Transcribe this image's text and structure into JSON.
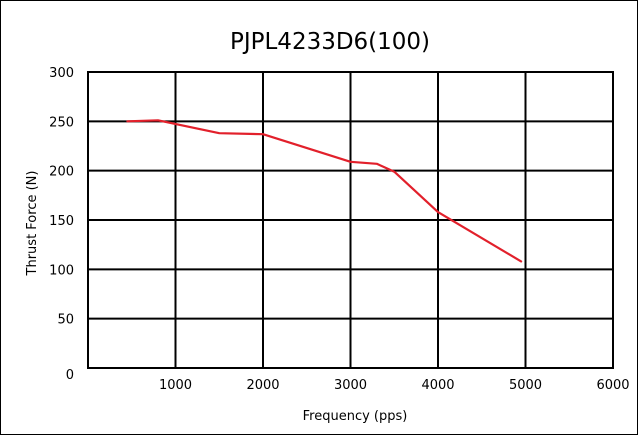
{
  "chart_data": {
    "type": "line",
    "title": "PJPL4233D6(100)",
    "xlabel": "Frequency (pps)",
    "ylabel": "Thrust Force (N)",
    "xlim": [
      0,
      6000
    ],
    "ylim": [
      0,
      300
    ],
    "x_ticks": [
      0,
      1000,
      2000,
      3000,
      4000,
      5000,
      6000
    ],
    "x_tick_labels": [
      "",
      "1000",
      "2000",
      "3000",
      "4000",
      "5000",
      "6000"
    ],
    "y_ticks": [
      0,
      50,
      100,
      150,
      200,
      250,
      300
    ],
    "y_tick_labels": [
      "0",
      "50",
      "100",
      "150",
      "200",
      "250",
      "300"
    ],
    "grid": true,
    "series": [
      {
        "color": "#e2202b",
        "x": [
          450,
          800,
          1500,
          2000,
          3000,
          3300,
          3500,
          4000,
          4950
        ],
        "y": [
          250,
          251,
          238,
          237,
          209,
          207,
          199,
          158,
          108
        ]
      }
    ]
  }
}
